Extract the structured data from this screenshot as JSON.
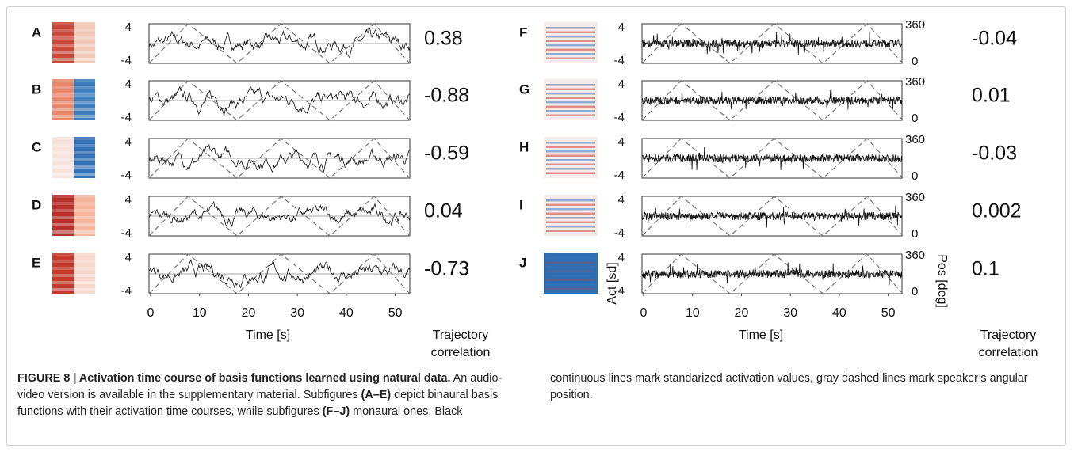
{
  "figure": {
    "left": {
      "panels": [
        {
          "label": "A",
          "correlation": "0.38"
        },
        {
          "label": "B",
          "correlation": "-0.88"
        },
        {
          "label": "C",
          "correlation": "-0.59"
        },
        {
          "label": "D",
          "correlation": "0.04"
        },
        {
          "label": "E",
          "correlation": "-0.73"
        }
      ],
      "y_ticks": [
        "4",
        "-4"
      ],
      "x_ticks": [
        "0",
        "10",
        "20",
        "30",
        "40",
        "50"
      ],
      "x_label": "Time [s]",
      "corr_label": [
        "Trajectory",
        "correlation"
      ]
    },
    "right": {
      "panels": [
        {
          "label": "F",
          "correlation": "-0.04"
        },
        {
          "label": "G",
          "correlation": "0.01"
        },
        {
          "label": "H",
          "correlation": "-0.03"
        },
        {
          "label": "I",
          "correlation": "0.002"
        },
        {
          "label": "J",
          "correlation": "0.1"
        }
      ],
      "y_ticks": [
        "4",
        "-4"
      ],
      "y2_ticks": [
        "360",
        "0"
      ],
      "x_ticks": [
        "0",
        "10",
        "20",
        "30",
        "40",
        "50"
      ],
      "x_label": "Time [s]",
      "y_label": "Act [sd]",
      "y2_label": "Pos [deg]",
      "corr_label": [
        "Trajectory",
        "correlation"
      ]
    }
  },
  "caption": {
    "title": "FIGURE 8 | Activation time course of basis functions learned using natural data.",
    "text1": " An audio-video version is available in the supplementary material. Subfigures ",
    "ref1": "(A–E)",
    "text2": " depict binaural basis functions with their activation time courses, while subfigures ",
    "ref2": "(F–J)",
    "text3": " monaural ones. Black continuous lines mark standarized activation values, gray dashed lines mark speaker’s angular position."
  }
}
